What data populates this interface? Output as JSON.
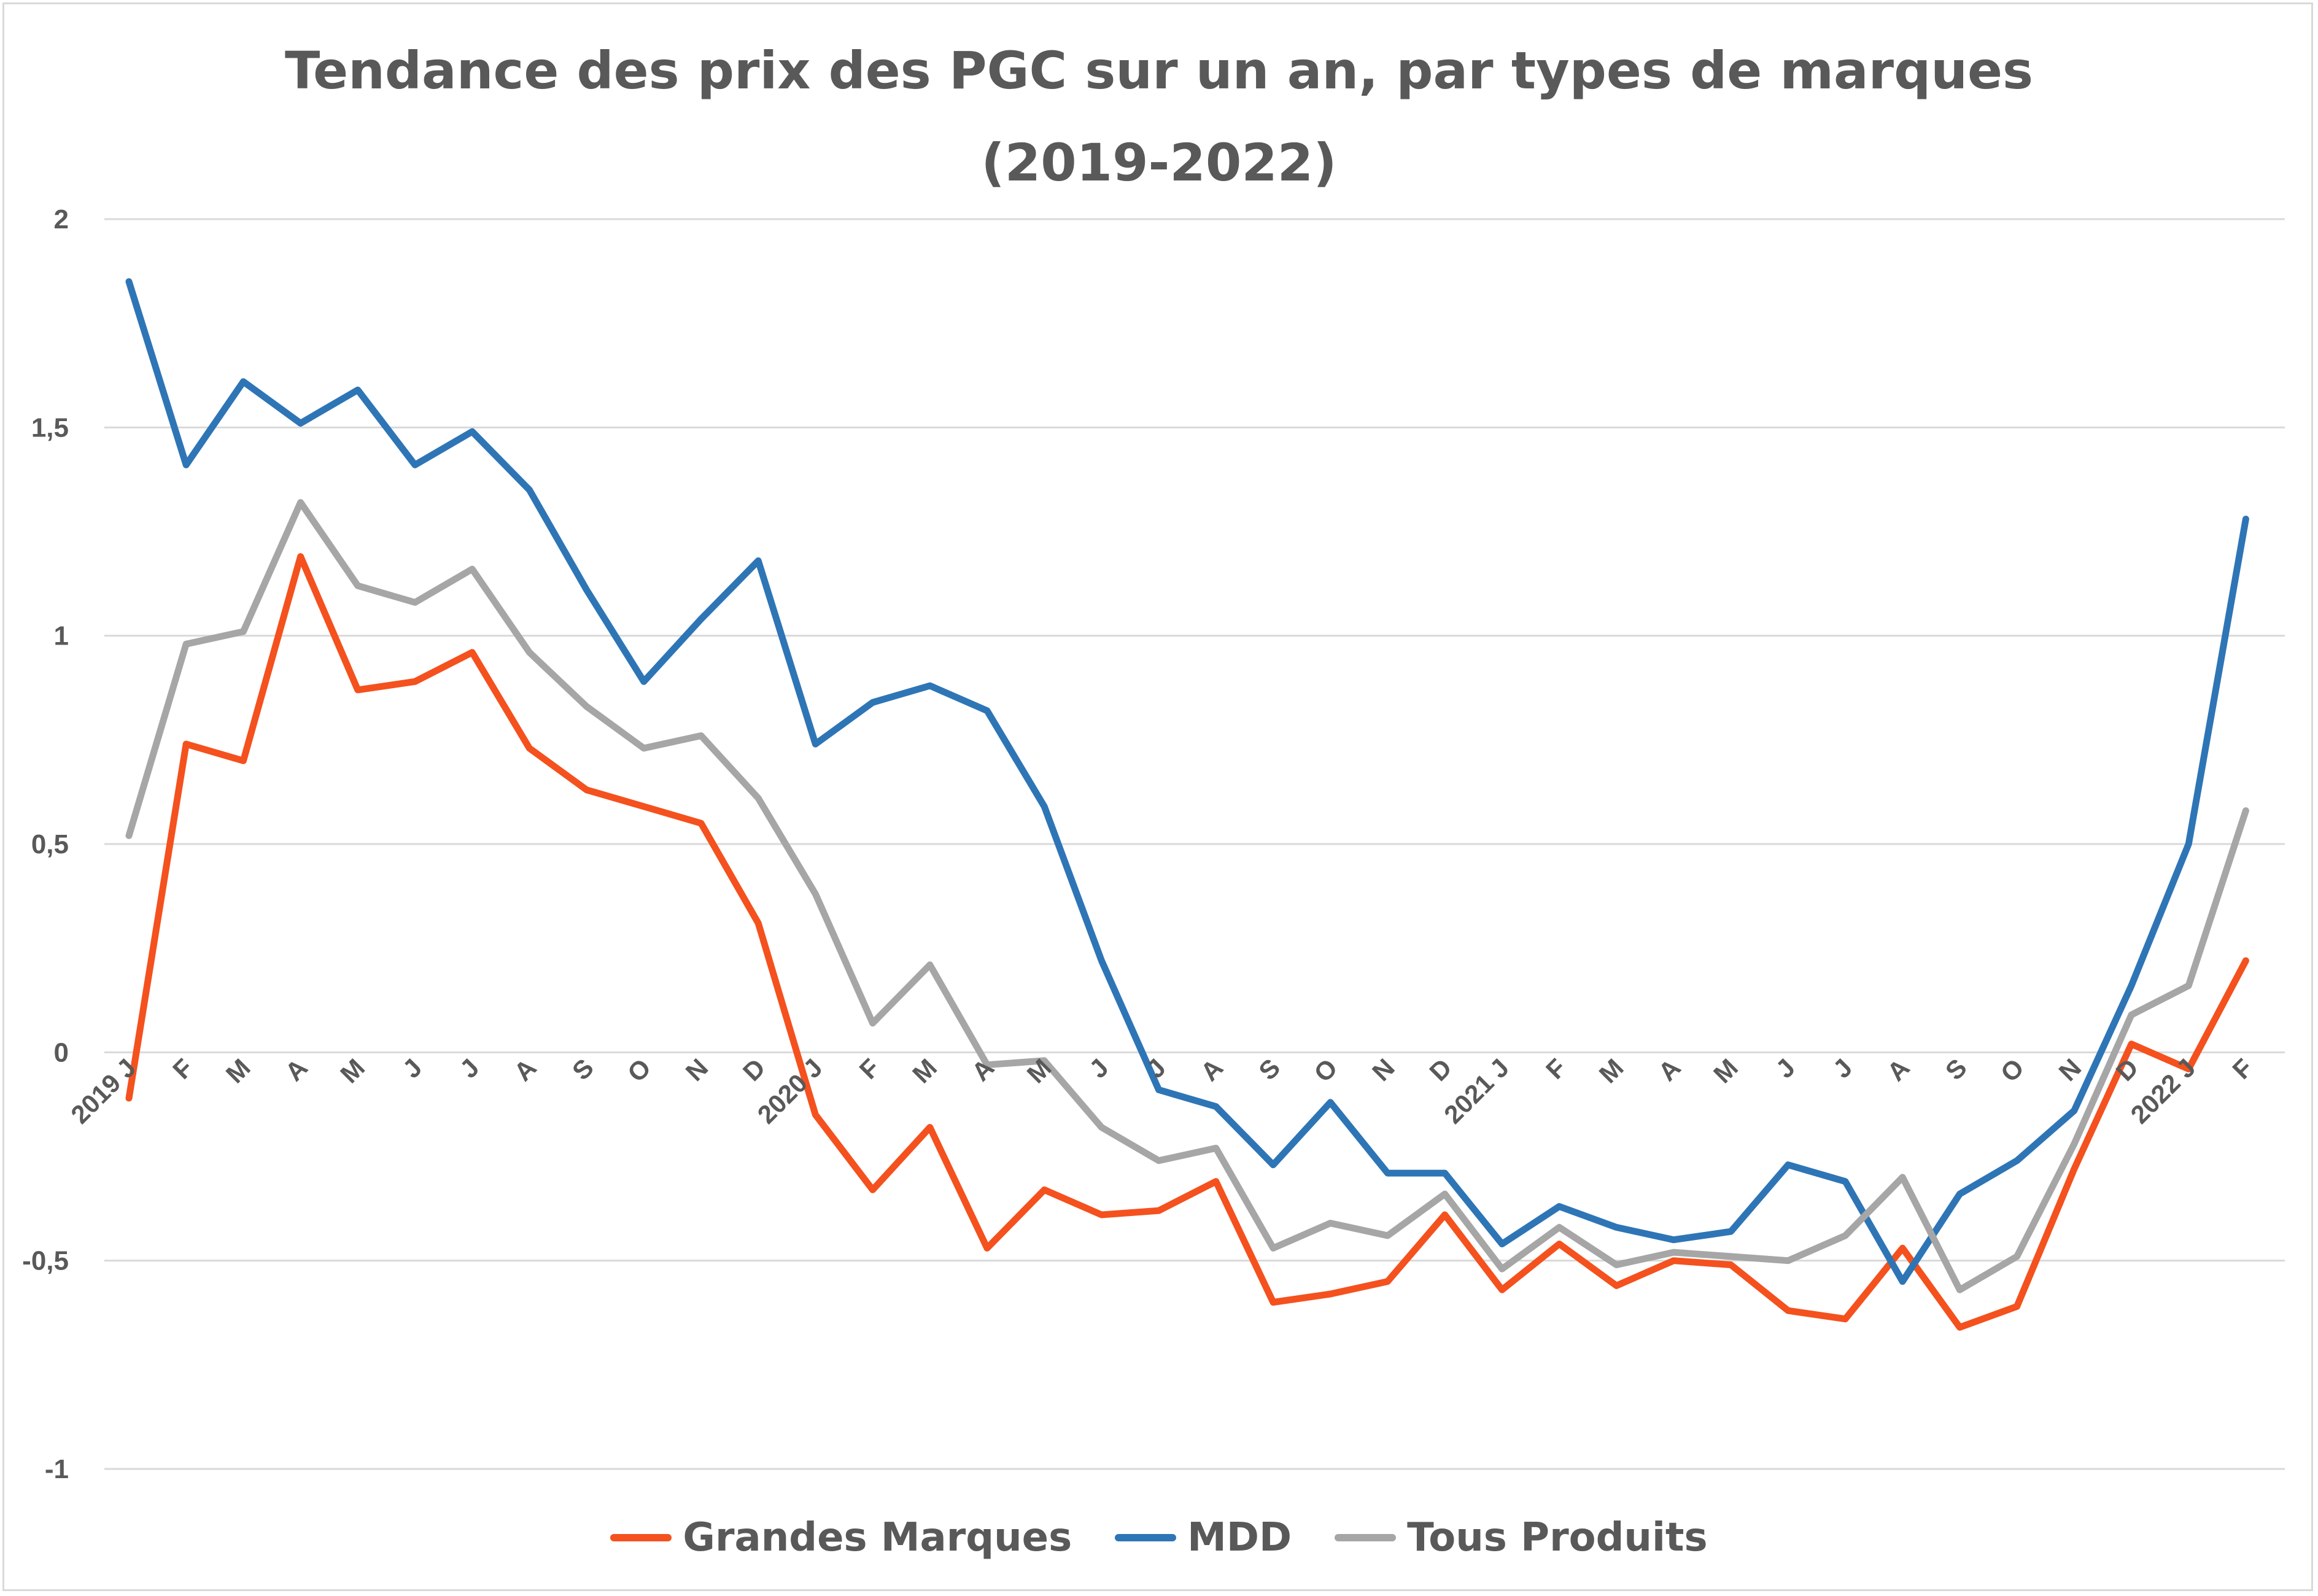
{
  "chart_data": {
    "type": "line",
    "title_line1": "Tendance des prix des PGC sur un an, par types de marques",
    "title_line2": "(2019-2022)",
    "xlabel": "",
    "ylabel": "",
    "ylim": [
      -1,
      2
    ],
    "y_ticks": [
      -1,
      -0.5,
      0,
      0.5,
      1,
      1.5,
      2
    ],
    "y_tick_labels": [
      "-1",
      "-0,5",
      "0",
      "0,5",
      "1",
      "1,5",
      "2"
    ],
    "grid": true,
    "legend_position": "bottom",
    "x_month_labels": [
      "J",
      "F",
      "M",
      "A",
      "M",
      "J",
      "J",
      "A",
      "S",
      "O",
      "N",
      "D",
      "J",
      "F",
      "M",
      "A",
      "M",
      "J",
      "J",
      "A",
      "S",
      "O",
      "N",
      "D",
      "J",
      "F",
      "M",
      "A",
      "M",
      "J",
      "J",
      "A",
      "S",
      "O",
      "N",
      "D",
      "J",
      "F"
    ],
    "x_year_labels": [
      {
        "index": 0,
        "label": "2019"
      },
      {
        "index": 12,
        "label": "2020"
      },
      {
        "index": 24,
        "label": "2021"
      },
      {
        "index": 36,
        "label": "2022"
      }
    ],
    "series": [
      {
        "name": "Grandes Marques",
        "color": "#f4511e",
        "values": [
          -0.11,
          0.74,
          0.7,
          1.19,
          0.87,
          0.89,
          0.96,
          0.73,
          0.63,
          0.59,
          0.55,
          0.31,
          -0.15,
          -0.33,
          -0.18,
          -0.47,
          -0.33,
          -0.39,
          -0.38,
          -0.31,
          -0.6,
          -0.58,
          -0.55,
          -0.39,
          -0.57,
          -0.46,
          -0.56,
          -0.5,
          -0.51,
          -0.62,
          -0.64,
          -0.47,
          -0.66,
          -0.61,
          -0.28,
          0.02,
          -0.04,
          0.22
        ]
      },
      {
        "name": "MDD",
        "color": "#2e75b6",
        "values": [
          1.85,
          1.41,
          1.61,
          1.51,
          1.59,
          1.41,
          1.49,
          1.35,
          1.11,
          0.89,
          1.04,
          1.18,
          0.74,
          0.84,
          0.88,
          0.82,
          0.59,
          0.22,
          -0.09,
          -0.13,
          -0.27,
          -0.12,
          -0.29,
          -0.29,
          -0.46,
          -0.37,
          -0.42,
          -0.45,
          -0.43,
          -0.27,
          -0.31,
          -0.55,
          -0.34,
          -0.26,
          -0.14,
          0.16,
          0.5,
          1.28
        ]
      },
      {
        "name": "Tous Produits",
        "color": "#a6a6a6",
        "values": [
          0.52,
          0.98,
          1.01,
          1.32,
          1.12,
          1.08,
          1.16,
          0.96,
          0.83,
          0.73,
          0.76,
          0.61,
          0.38,
          0.07,
          0.21,
          -0.03,
          -0.02,
          -0.18,
          -0.26,
          -0.23,
          -0.47,
          -0.41,
          -0.44,
          -0.34,
          -0.52,
          -0.42,
          -0.51,
          -0.48,
          -0.49,
          -0.5,
          -0.44,
          -0.3,
          -0.57,
          -0.49,
          -0.22,
          0.09,
          0.16,
          0.58
        ]
      }
    ]
  }
}
